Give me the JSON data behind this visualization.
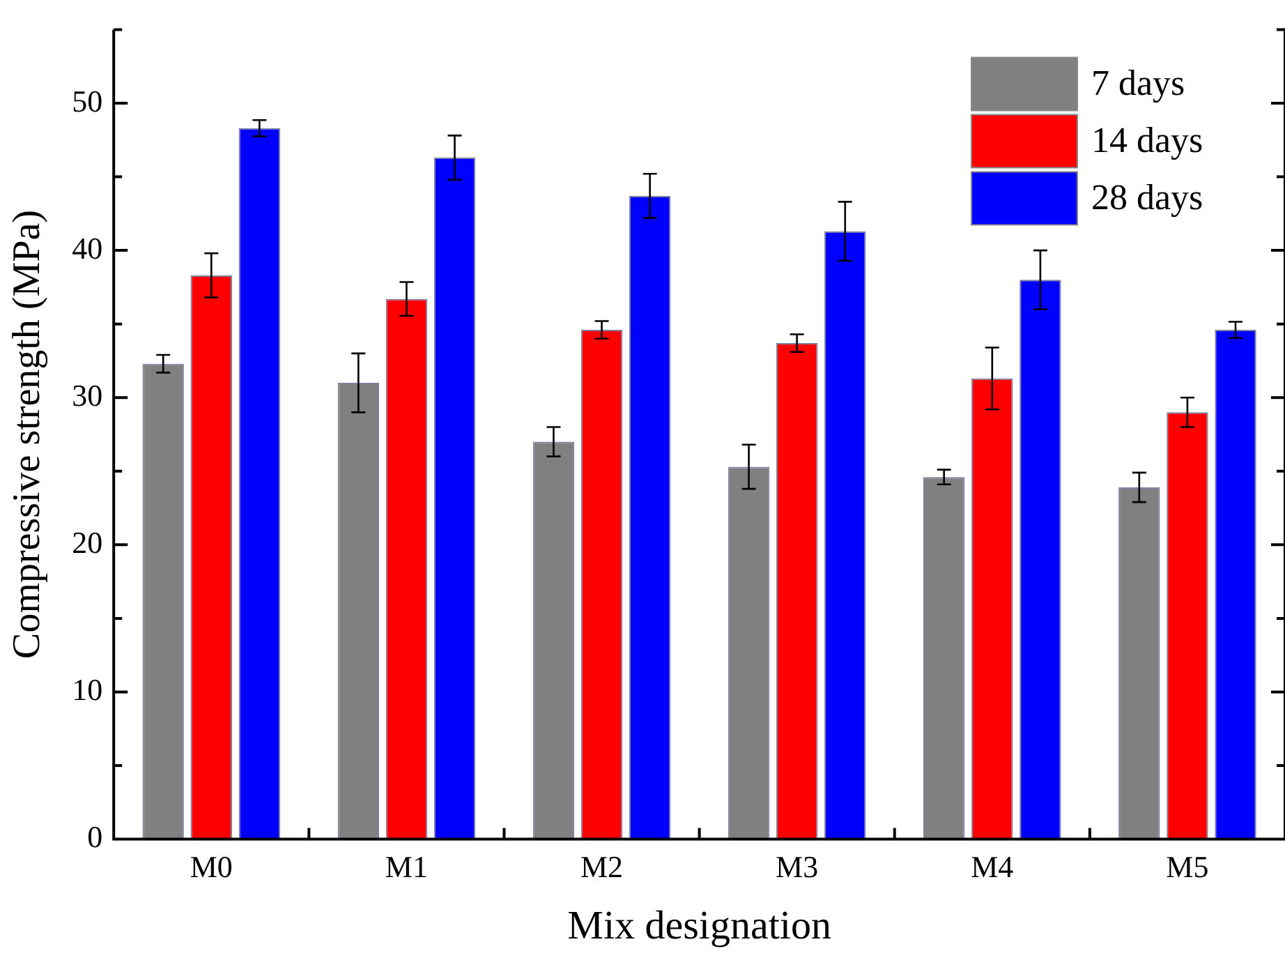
{
  "chart_data": {
    "type": "bar",
    "xlabel": "Mix designation",
    "ylabel": "Compressive strength (MPa)",
    "categories": [
      "M0",
      "M1",
      "M2",
      "M3",
      "M4",
      "M5"
    ],
    "series": [
      {
        "name": "7 days",
        "color": "#808080",
        "values": [
          32.3,
          31.0,
          27.0,
          25.3,
          24.6,
          23.9
        ],
        "errors": [
          0.6,
          2.0,
          1.0,
          1.5,
          0.5,
          1.0
        ]
      },
      {
        "name": "14 days",
        "color": "#ff0000",
        "values": [
          38.3,
          36.7,
          34.6,
          33.7,
          31.3,
          29.0
        ],
        "errors": [
          1.5,
          1.15,
          0.6,
          0.6,
          2.1,
          1.0
        ]
      },
      {
        "name": "28 days",
        "color": "#0000ff",
        "values": [
          48.3,
          46.3,
          43.7,
          41.3,
          38.0,
          34.6
        ],
        "errors": [
          0.55,
          1.5,
          1.5,
          2.0,
          2.0,
          0.55
        ]
      }
    ],
    "ylim": [
      0,
      55
    ],
    "yticks": [
      0,
      {
        "value": 5,
        "label": null
      },
      10,
      {
        "value": 15,
        "label": null
      },
      20,
      {
        "value": 25,
        "label": null
      },
      30,
      {
        "value": 35,
        "label": null
      },
      40,
      {
        "value": 45,
        "label": null
      },
      50,
      {
        "value": 55,
        "label": null
      }
    ],
    "grid": false,
    "legend": "top right"
  }
}
